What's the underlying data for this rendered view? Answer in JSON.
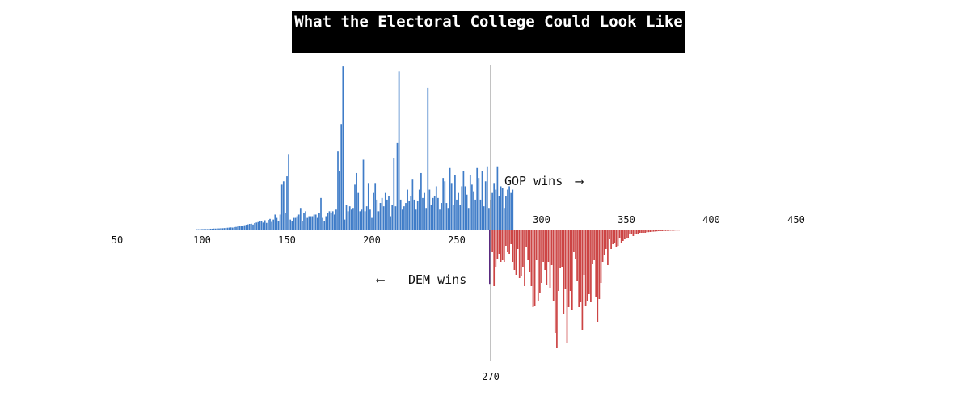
{
  "chart_data": {
    "type": "bar",
    "title": "What the Electoral College Could Look Like",
    "threshold": 270,
    "threshold_label": "270",
    "xlim": [
      50,
      455
    ],
    "xticks_dem": [
      "50",
      "100",
      "150",
      "200",
      "250"
    ],
    "xticks_gop": [
      "300",
      "350",
      "400",
      "450"
    ],
    "annotations": {
      "gop": "GOP wins",
      "dem": "DEM wins"
    },
    "colors": {
      "dem": "#3f7cc8",
      "gop": "#cc4444",
      "tie": "#5a2a80",
      "axis": "#9a9a9a"
    },
    "tie_value": 0.28,
    "dem_series": {
      "name": "DEM wins",
      "x_start": 97,
      "values": [
        0.2,
        0.2,
        0.2,
        0.3,
        0.3,
        0.3,
        0.3,
        0.4,
        0.5,
        0.5,
        0.6,
        0.6,
        0.7,
        0.7,
        0.8,
        0.8,
        0.9,
        1,
        1.1,
        1.2,
        1.3,
        1.2,
        1.5,
        1.6,
        1.8,
        2,
        2.3,
        2,
        2.6,
        2.9,
        3.1,
        3.4,
        3.5,
        3,
        3.9,
        4.2,
        4.5,
        5,
        5.1,
        4.2,
        5.6,
        4,
        5.8,
        6.4,
        4.6,
        6,
        9,
        7,
        5,
        9,
        27,
        29,
        10,
        32,
        45,
        6,
        5,
        7,
        7,
        8,
        9,
        13,
        5,
        10,
        11,
        7,
        8,
        8,
        8,
        9,
        9,
        7,
        10,
        19,
        7,
        5,
        8,
        10,
        11,
        10,
        11,
        9,
        12,
        47,
        35,
        63,
        98,
        6,
        15,
        11,
        14,
        12,
        13,
        27,
        34,
        22,
        11,
        12,
        42,
        11,
        14,
        28,
        12,
        7,
        22,
        28,
        18,
        11,
        16,
        19,
        14,
        22,
        18,
        20,
        8,
        15,
        43,
        14,
        52,
        95,
        18,
        12,
        14,
        16,
        24,
        17,
        20,
        30,
        18,
        12,
        17,
        24,
        34,
        19,
        22,
        13,
        85,
        24,
        15,
        19,
        20,
        26,
        19,
        12,
        16,
        31,
        29,
        16,
        13,
        37,
        28,
        15,
        33,
        18,
        22,
        15,
        26,
        35,
        26,
        21,
        13,
        33,
        27,
        23,
        18,
        37,
        31,
        18,
        35,
        14,
        29,
        38,
        13,
        18,
        22,
        28,
        24,
        38,
        20,
        26,
        25,
        13,
        20,
        24,
        26,
        22,
        24
      ]
    },
    "gop_series": {
      "name": "GOP wins",
      "x_start": 271,
      "values": [
        14,
        35,
        23,
        18,
        15,
        20,
        19,
        20,
        10,
        14,
        15,
        9,
        20,
        25,
        28,
        12,
        30,
        29,
        23,
        35,
        11,
        19,
        26,
        35,
        48,
        47,
        19,
        44,
        39,
        33,
        20,
        25,
        34,
        20,
        36,
        22,
        44,
        64,
        73,
        38,
        24,
        23,
        52,
        37,
        70,
        48,
        38,
        50,
        14,
        18,
        32,
        48,
        45,
        62,
        28,
        47,
        44,
        40,
        45,
        21,
        19,
        42,
        57,
        43,
        33,
        20,
        16,
        12,
        22,
        6,
        12,
        9,
        8,
        11,
        10,
        5,
        8,
        7,
        6,
        5,
        5,
        3,
        3,
        4,
        3,
        3,
        3,
        2,
        2,
        2,
        2,
        1.7,
        1.6,
        1.5,
        1.4,
        1.3,
        1.2,
        1.1,
        1,
        1,
        1,
        0.9,
        0.9,
        0.8,
        0.8,
        0.7,
        0.7,
        0.7,
        0.6,
        0.6,
        0.6,
        0.5,
        0.5,
        0.5,
        0.5,
        0.4,
        0.4,
        0.4,
        0.4,
        0.4,
        0.3,
        0.3,
        0.3,
        0.3,
        0.3,
        0.3,
        0.2,
        0.2,
        0.2,
        0.2,
        0.2,
        0.2,
        0.2,
        0.2,
        0.2,
        0.2,
        0.2,
        0.2,
        0.1,
        0.1,
        0.1,
        0.1,
        0.1,
        0.1,
        0.1,
        0.1,
        0.1,
        0.1,
        0.1,
        0.1,
        0.1,
        0.1,
        0.1,
        0.1,
        0.1,
        0.1,
        0.1,
        0.1,
        0.1,
        0.1,
        0.1,
        0.1,
        0.1,
        0.1,
        0.1,
        0.1,
        0.1,
        0.1,
        0.1,
        0.1,
        0.1,
        0.1,
        0.1,
        0.1,
        0.1,
        0.1,
        0.1
      ]
    }
  }
}
